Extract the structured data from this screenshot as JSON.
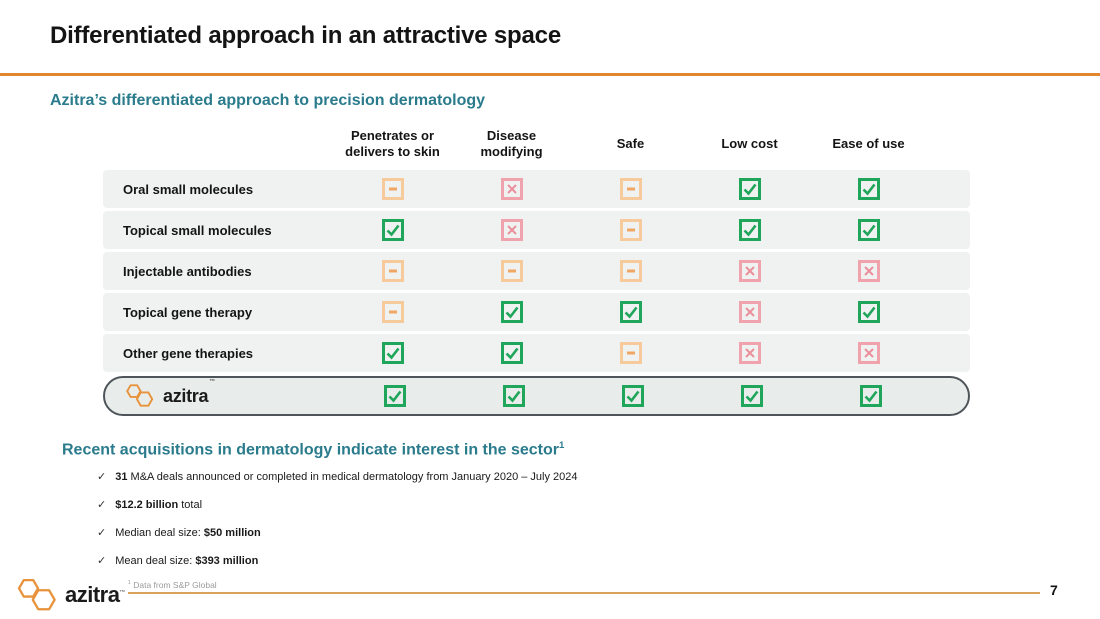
{
  "slide": {
    "title": "Differentiated approach in an attractive space"
  },
  "colors": {
    "accent_orange": "#E0872E",
    "heading_teal": "#2A7B8C",
    "check_green": "#1FA65A",
    "dash_border": "#F6CA9A",
    "dash_glyph": "#EFA763",
    "x_border": "#F0A3AD",
    "x_glyph": "#EB8F9C",
    "logo_orange": "#E8923B",
    "azitra_row_border": "#4E555A"
  },
  "matrix": {
    "heading": "Azitra’s differentiated approach to precision dermatology",
    "columns": [
      "Penetrates or delivers to skin",
      "Disease modifying",
      "Safe",
      "Low cost",
      "Ease of use"
    ],
    "logo_text": "azitra",
    "logo_tm": "™",
    "rows": [
      {
        "label": "Oral small molecules",
        "is_logo": false,
        "cells": [
          "dash",
          "x",
          "dash",
          "check",
          "check"
        ]
      },
      {
        "label": "Topical small molecules",
        "is_logo": false,
        "cells": [
          "check",
          "x",
          "dash",
          "check",
          "check"
        ]
      },
      {
        "label": "Injectable antibodies",
        "is_logo": false,
        "cells": [
          "dash",
          "dash",
          "dash",
          "x",
          "x"
        ]
      },
      {
        "label": "Topical gene therapy",
        "is_logo": false,
        "cells": [
          "dash",
          "check",
          "check",
          "x",
          "check"
        ]
      },
      {
        "label": "Other gene therapies",
        "is_logo": false,
        "cells": [
          "check",
          "check",
          "dash",
          "x",
          "x"
        ]
      },
      {
        "label": "azitra",
        "is_logo": true,
        "cells": [
          "check",
          "check",
          "check",
          "check",
          "check"
        ]
      }
    ]
  },
  "acquisitions": {
    "heading": "Recent acquisitions in dermatology indicate interest in the sector",
    "heading_superscript": "1",
    "bullet_marker": "✓",
    "bullets": [
      {
        "segments": [
          {
            "text": "31",
            "bold": true
          },
          {
            "text": " M&A deals announced or completed in medical dermatology from January 2020 – July 2024",
            "bold": false
          }
        ]
      },
      {
        "segments": [
          {
            "text": "$12.2 billion",
            "bold": true
          },
          {
            "text": " total",
            "bold": false
          }
        ]
      },
      {
        "segments": [
          {
            "text": "Median deal size: ",
            "bold": false
          },
          {
            "text": "$50 million",
            "bold": true
          }
        ]
      },
      {
        "segments": [
          {
            "text": "Mean deal size: ",
            "bold": false
          },
          {
            "text": "$393 million",
            "bold": true
          }
        ]
      }
    ]
  },
  "footer": {
    "logo_text": "azitra",
    "logo_tm": "™",
    "footnote_superscript": "1",
    "footnote": "Data from S&P Global",
    "page_number": "7"
  }
}
